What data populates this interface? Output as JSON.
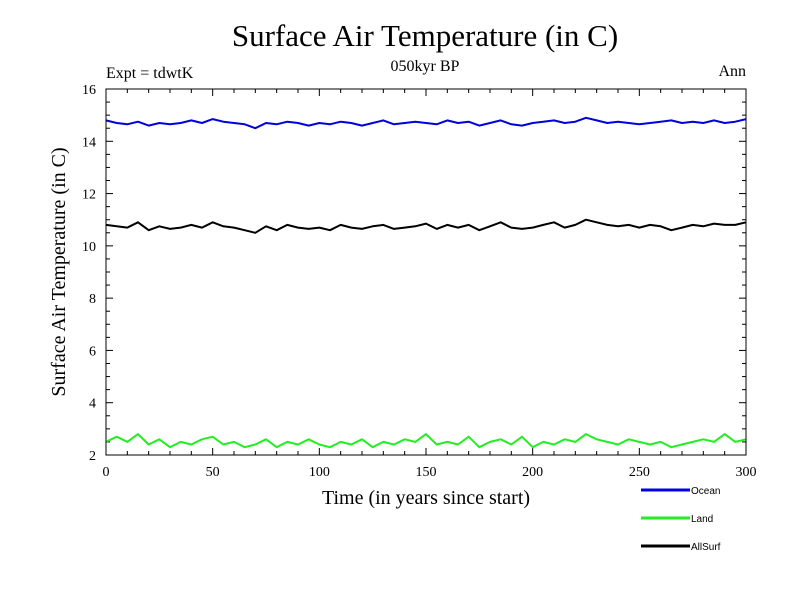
{
  "chart_data": {
    "type": "line",
    "title": "Surface Air Temperature (in C)",
    "subtitle": "050kyr BP",
    "experiment_label": "Expt = tdwtK",
    "season_label": "Ann",
    "xlabel": "Time (in years since start)",
    "ylabel": "Surface Air Temperature (in C)",
    "xlim": [
      0,
      300
    ],
    "ylim": [
      2,
      16
    ],
    "x_ticks": [
      0,
      50,
      100,
      150,
      200,
      250,
      300
    ],
    "y_ticks": [
      2,
      4,
      6,
      8,
      10,
      12,
      14,
      16
    ],
    "legend_position": "bottom-right",
    "series": [
      {
        "name": "Ocean",
        "color": "#0000dd",
        "x": [
          0,
          5,
          10,
          15,
          20,
          25,
          30,
          35,
          40,
          45,
          50,
          55,
          60,
          65,
          70,
          75,
          80,
          85,
          90,
          95,
          100,
          105,
          110,
          115,
          120,
          125,
          130,
          135,
          140,
          145,
          150,
          155,
          160,
          165,
          170,
          175,
          180,
          185,
          190,
          195,
          200,
          205,
          210,
          215,
          220,
          225,
          230,
          235,
          240,
          245,
          250,
          255,
          260,
          265,
          270,
          275,
          280,
          285,
          290,
          295,
          300
        ],
        "values": [
          14.8,
          14.7,
          14.65,
          14.75,
          14.6,
          14.7,
          14.65,
          14.7,
          14.8,
          14.7,
          14.85,
          14.75,
          14.7,
          14.65,
          14.5,
          14.7,
          14.65,
          14.75,
          14.7,
          14.6,
          14.7,
          14.65,
          14.75,
          14.7,
          14.6,
          14.7,
          14.8,
          14.65,
          14.7,
          14.75,
          14.7,
          14.65,
          14.8,
          14.7,
          14.75,
          14.6,
          14.7,
          14.8,
          14.65,
          14.6,
          14.7,
          14.75,
          14.8,
          14.7,
          14.75,
          14.9,
          14.8,
          14.7,
          14.75,
          14.7,
          14.65,
          14.7,
          14.75,
          14.8,
          14.7,
          14.75,
          14.7,
          14.8,
          14.7,
          14.75,
          14.85
        ]
      },
      {
        "name": "Land",
        "color": "#22ee22",
        "x": [
          0,
          5,
          10,
          15,
          20,
          25,
          30,
          35,
          40,
          45,
          50,
          55,
          60,
          65,
          70,
          75,
          80,
          85,
          90,
          95,
          100,
          105,
          110,
          115,
          120,
          125,
          130,
          135,
          140,
          145,
          150,
          155,
          160,
          165,
          170,
          175,
          180,
          185,
          190,
          195,
          200,
          205,
          210,
          215,
          220,
          225,
          230,
          235,
          240,
          245,
          250,
          255,
          260,
          265,
          270,
          275,
          280,
          285,
          290,
          295,
          300
        ],
        "values": [
          2.5,
          2.7,
          2.5,
          2.8,
          2.4,
          2.6,
          2.3,
          2.5,
          2.4,
          2.6,
          2.7,
          2.4,
          2.5,
          2.3,
          2.4,
          2.6,
          2.3,
          2.5,
          2.4,
          2.6,
          2.4,
          2.3,
          2.5,
          2.4,
          2.6,
          2.3,
          2.5,
          2.4,
          2.6,
          2.5,
          2.8,
          2.4,
          2.5,
          2.4,
          2.7,
          2.3,
          2.5,
          2.6,
          2.4,
          2.7,
          2.3,
          2.5,
          2.4,
          2.6,
          2.5,
          2.8,
          2.6,
          2.5,
          2.4,
          2.6,
          2.5,
          2.4,
          2.5,
          2.3,
          2.4,
          2.5,
          2.6,
          2.5,
          2.8,
          2.5,
          2.6
        ]
      },
      {
        "name": "AllSurf",
        "color": "#000000",
        "x": [
          0,
          5,
          10,
          15,
          20,
          25,
          30,
          35,
          40,
          45,
          50,
          55,
          60,
          65,
          70,
          75,
          80,
          85,
          90,
          95,
          100,
          105,
          110,
          115,
          120,
          125,
          130,
          135,
          140,
          145,
          150,
          155,
          160,
          165,
          170,
          175,
          180,
          185,
          190,
          195,
          200,
          205,
          210,
          215,
          220,
          225,
          230,
          235,
          240,
          245,
          250,
          255,
          260,
          265,
          270,
          275,
          280,
          285,
          290,
          295,
          300
        ],
        "values": [
          10.8,
          10.75,
          10.7,
          10.9,
          10.6,
          10.75,
          10.65,
          10.7,
          10.8,
          10.7,
          10.9,
          10.75,
          10.7,
          10.6,
          10.5,
          10.75,
          10.6,
          10.8,
          10.7,
          10.65,
          10.7,
          10.6,
          10.8,
          10.7,
          10.65,
          10.75,
          10.8,
          10.65,
          10.7,
          10.75,
          10.85,
          10.65,
          10.8,
          10.7,
          10.8,
          10.6,
          10.75,
          10.9,
          10.7,
          10.65,
          10.7,
          10.8,
          10.9,
          10.7,
          10.8,
          11.0,
          10.9,
          10.8,
          10.75,
          10.8,
          10.7,
          10.8,
          10.75,
          10.6,
          10.7,
          10.8,
          10.75,
          10.85,
          10.8,
          10.8,
          10.9
        ]
      }
    ]
  }
}
